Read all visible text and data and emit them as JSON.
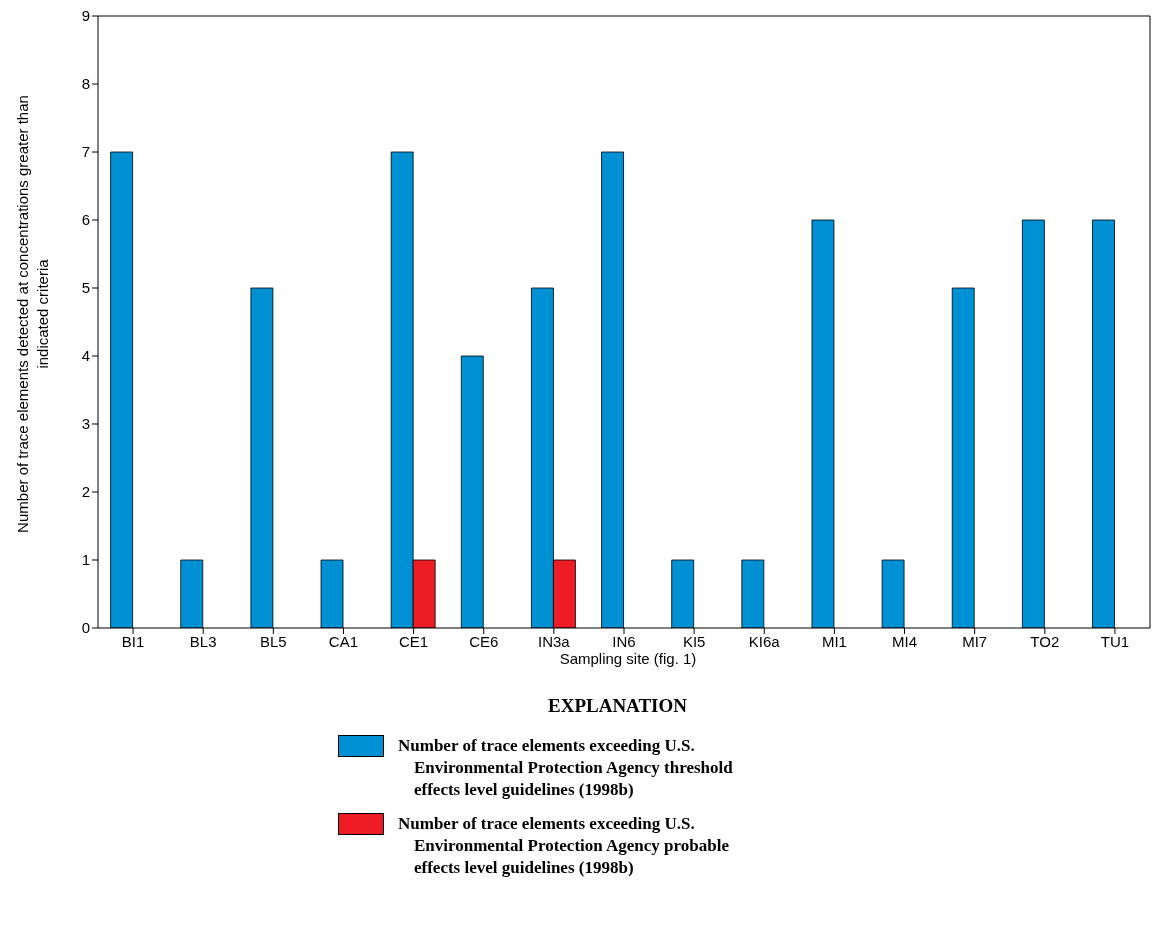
{
  "chart_data": {
    "type": "bar",
    "xlabel": "Sampling site (fig. 1)",
    "ylabel": "Number of trace elements detected at concentrations greater than indicated criteria",
    "legend_title": "EXPLANATION",
    "categories": [
      "BI1",
      "BL3",
      "BL5",
      "CA1",
      "CE1",
      "CE6",
      "IN3a",
      "IN6",
      "KI5",
      "KI6a",
      "MI1",
      "MI4",
      "MI7",
      "TO2",
      "TU1"
    ],
    "series": [
      {
        "name": "Number of trace elements exceeding U.S. Environmental Protection Agency threshold effects level guidelines (1998b)",
        "color": "#0090d4",
        "values": [
          7,
          1,
          5,
          1,
          7,
          4,
          5,
          7,
          1,
          1,
          6,
          1,
          5,
          6,
          6
        ]
      },
      {
        "name": "Number of trace elements exceeding U.S. Environmental Protection Agency probable effects level guidelines (1998b)",
        "color": "#ee1c25",
        "values": [
          0,
          0,
          0,
          0,
          1,
          0,
          1,
          0,
          0,
          0,
          0,
          0,
          0,
          0,
          0
        ]
      }
    ],
    "ylim": [
      0,
      9
    ],
    "yticks": [
      0,
      1,
      2,
      3,
      4,
      5,
      6,
      7,
      8,
      9
    ],
    "legend": "bottom"
  }
}
